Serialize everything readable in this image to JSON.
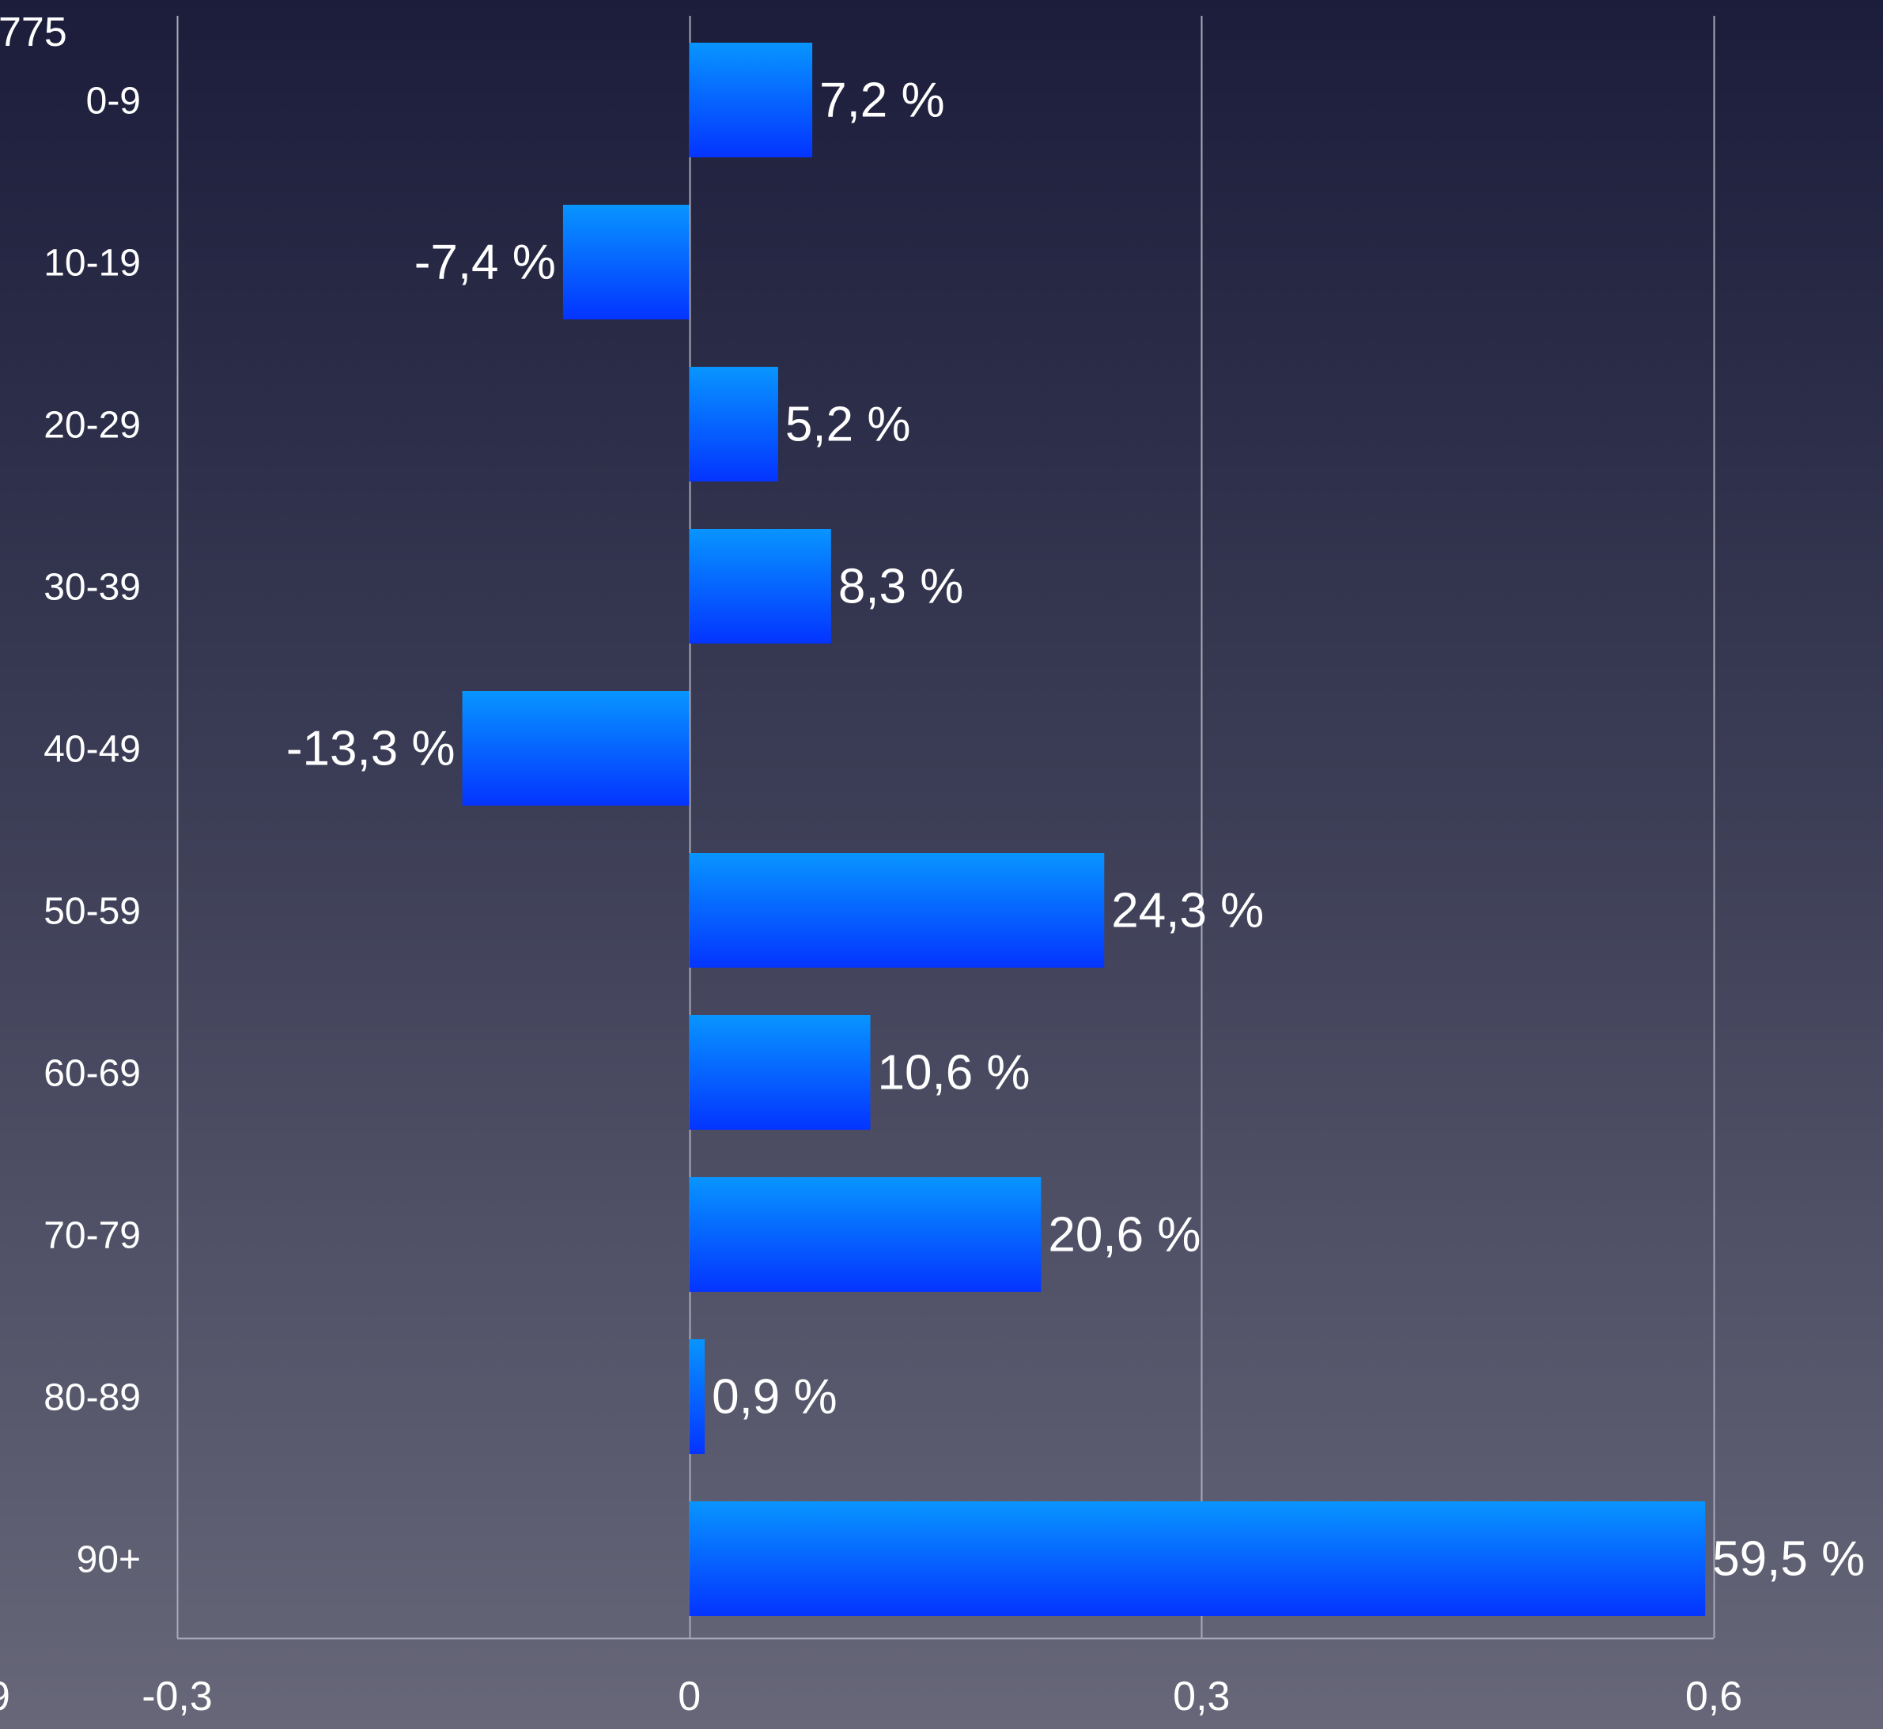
{
  "colors": {
    "bar_top": "#0895ff",
    "bar_bottom": "#0434ff",
    "grid": "#a8a8b8",
    "text": "#ffffff"
  },
  "chart_data": {
    "type": "bar",
    "orientation": "horizontal",
    "title": "",
    "xlabel": "",
    "ylabel": "",
    "categories": [
      "0-9",
      "10-19",
      "20-29",
      "30-39",
      "40-49",
      "50-59",
      "60-69",
      "70-79",
      "80-89",
      "90+"
    ],
    "values": [
      0.072,
      -0.074,
      0.052,
      0.083,
      -0.133,
      0.243,
      0.106,
      0.206,
      0.009,
      0.595
    ],
    "data_labels": [
      "7,2 %",
      "-7,4 %",
      "5,2 %",
      "8,3 %",
      "-13,3 %",
      "24,3 %",
      "10,6 %",
      "20,6 %",
      "0,9 %",
      "59,5 %"
    ],
    "xlim": [
      -0.3,
      0.6
    ],
    "x_ticks": [
      -0.3,
      0,
      0.3,
      0.6
    ],
    "x_tick_labels": [
      "-0,3",
      "0",
      "0,3",
      "0,6"
    ],
    "grid": true,
    "partial_text_top_left": "775",
    "partial_text_bottom_left": "9"
  }
}
